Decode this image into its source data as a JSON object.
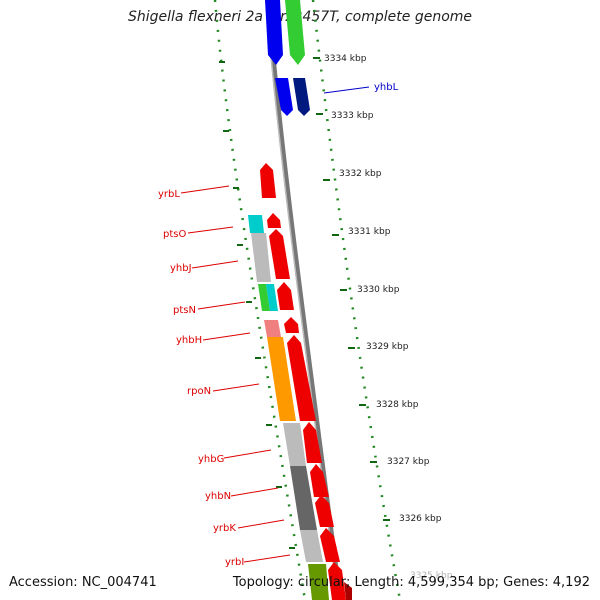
{
  "title": "Shigella flexneri 2a str. 2457T, complete genome",
  "accession": "Accession: NC_004741",
  "summary": "Topology: circular; Length: 4,599,354 bp; Genes: 4,192",
  "ruler_labels": [
    "3334 kbp",
    "3333 kbp",
    "3332 kbp",
    "3331 kbp",
    "3330 kbp",
    "3329 kbp",
    "3328 kbp",
    "3327 kbp",
    "3326 kbp",
    "3325 kbp"
  ],
  "genes": [
    {
      "name": "yhbL",
      "color": "#0000cc"
    },
    {
      "name": "yrbL",
      "color": "#dd0000"
    },
    {
      "name": "ptsO",
      "color": "#dd0000"
    },
    {
      "name": "yhbJ",
      "color": "#dd0000"
    },
    {
      "name": "ptsN",
      "color": "#dd0000"
    },
    {
      "name": "yhbH",
      "color": "#dd0000"
    },
    {
      "name": "rpoN",
      "color": "#dd0000"
    },
    {
      "name": "yhbG",
      "color": "#dd0000"
    },
    {
      "name": "yhbN",
      "color": "#dd0000"
    },
    {
      "name": "yrbK",
      "color": "#dd0000"
    },
    {
      "name": "yrbI",
      "color": "#dd0000"
    }
  ],
  "colors": {
    "cds": "#ee0000",
    "cds_blue": "#0000ee",
    "cds_navy": "#001a80",
    "green": "#33cc33",
    "cyan": "#00cccc",
    "orange": "#ff9900",
    "grey_light": "#bbbbbb",
    "grey_dark": "#666666",
    "pink": "#f08080",
    "backbone": "#888888",
    "ticks": "#006600"
  }
}
